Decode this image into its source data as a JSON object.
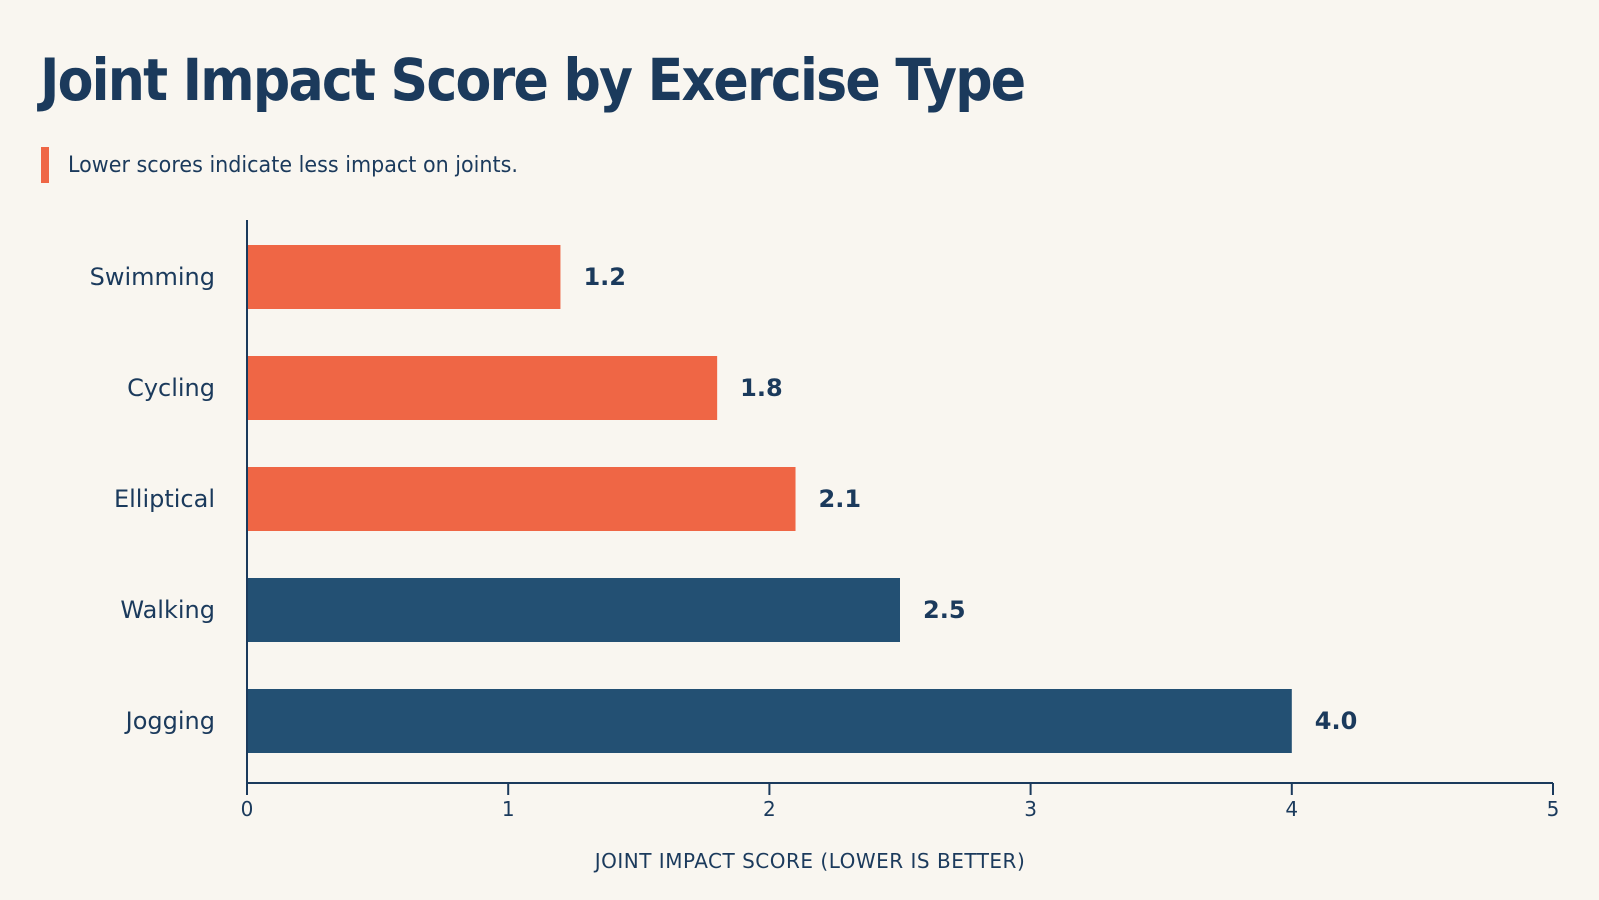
{
  "chart_data": {
    "type": "bar",
    "orientation": "horizontal",
    "title": "Joint Impact Score by Exercise Type",
    "subtitle": "Lower scores indicate less impact on joints.",
    "categories": [
      "Swimming",
      "Cycling",
      "Elliptical",
      "Walking",
      "Jogging"
    ],
    "values": [
      1.2,
      1.8,
      2.1,
      2.5,
      4.0
    ],
    "value_labels": [
      "1.2",
      "1.8",
      "2.1",
      "2.5",
      "4.0"
    ],
    "bar_colors": [
      "#ef6645",
      "#ef6645",
      "#ef6645",
      "#235073",
      "#235073"
    ],
    "xlabel": "JOINT IMPACT SCORE (LOWER IS BETTER)",
    "ylabel": "",
    "xlim": [
      0,
      5
    ],
    "x_ticks": [
      "0",
      "1",
      "2",
      "3",
      "4",
      "5"
    ],
    "grid": false,
    "legend": "none"
  },
  "colors": {
    "background": "#f9f6f0",
    "text": "#1b3a5c",
    "accent": "#ef6645",
    "dark": "#235073",
    "axis": "#1b3a5c"
  }
}
